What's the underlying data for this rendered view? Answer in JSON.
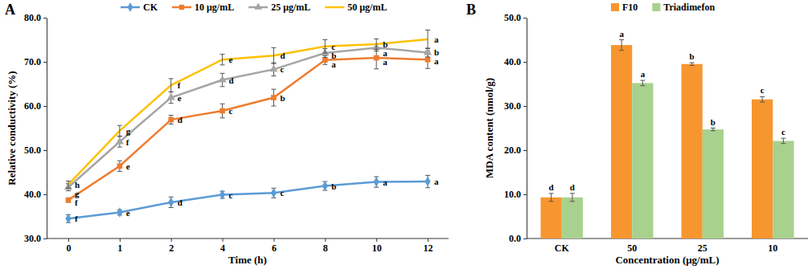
{
  "chart_data": [
    {
      "type": "line",
      "title": "A",
      "x_label": "Time (h)",
      "y_label": "Relative conductivity (%)",
      "categories": [
        "0",
        "1",
        "2",
        "4",
        "6",
        "8",
        "10",
        "12"
      ],
      "ylim": [
        30,
        80
      ],
      "yticks": [
        {
          "value": 30,
          "label": "30.0"
        },
        {
          "value": 40,
          "label": "40.0"
        },
        {
          "value": 50,
          "label": "50.0"
        },
        {
          "value": 60,
          "label": "60.0"
        },
        {
          "value": 70,
          "label": "70.0"
        },
        {
          "value": 80,
          "label": "80.0"
        }
      ],
      "legend": "top",
      "series": [
        {
          "name": "CK",
          "color": "#5B9BD5",
          "marker": "diamond",
          "values": [
            34.5,
            35.9,
            38.2,
            39.9,
            40.3,
            41.9,
            42.8,
            42.9
          ],
          "errors": [
            0.9,
            0.6,
            1.2,
            0.8,
            1.1,
            1.0,
            1.2,
            1.4
          ],
          "letters": [
            "f",
            "e",
            "d",
            "c",
            "c",
            "b",
            "a",
            "a"
          ]
        },
        {
          "name": "10 μg/mL",
          "color": "#ED7D31",
          "marker": "square",
          "values": [
            38.7,
            46.4,
            56.9,
            58.9,
            61.9,
            70.4,
            70.9,
            70.5
          ],
          "errors": [
            0.5,
            1.2,
            1.0,
            1.6,
            1.9,
            1.0,
            2.5,
            2.0
          ],
          "letters": [
            "f",
            "e",
            "d",
            "c",
            "b",
            "a",
            "a",
            "a"
          ]
        },
        {
          "name": "25 μg/mL",
          "color": "#A5A5A5",
          "marker": "triangle",
          "values": [
            41.6,
            51.9,
            61.9,
            65.9,
            68.3,
            72.0,
            73.2,
            72.1
          ],
          "errors": [
            0.8,
            1.2,
            1.3,
            1.5,
            1.5,
            1.0,
            0.8,
            1.0
          ],
          "letters": [
            "g",
            "f",
            "e",
            "d",
            "c",
            "b",
            "a",
            "b"
          ]
        },
        {
          "name": "50 μg/mL",
          "color": "#FFC000",
          "marker": "none",
          "values": [
            42.2,
            54.4,
            64.7,
            70.5,
            71.4,
            73.5,
            74.0,
            75.1
          ],
          "errors": [
            0.8,
            1.2,
            1.5,
            1.2,
            1.8,
            1.5,
            1.2,
            2.1
          ],
          "letters": [
            "h",
            "g",
            "f",
            "e",
            "d",
            "c",
            "b",
            "a"
          ]
        }
      ]
    },
    {
      "type": "bar",
      "title": "B",
      "x_label": "Concentration (μg/mL)",
      "y_label": "MDA content (nmol/g)",
      "categories": [
        "CK",
        "50",
        "25",
        "10"
      ],
      "ylim": [
        0,
        50
      ],
      "yticks": [
        {
          "value": 0,
          "label": "0.0"
        },
        {
          "value": 10,
          "label": "10.0"
        },
        {
          "value": 20,
          "label": "20.0"
        },
        {
          "value": 30,
          "label": "30.0"
        },
        {
          "value": 40,
          "label": "40.0"
        },
        {
          "value": 50,
          "label": "50.0"
        }
      ],
      "legend": "top",
      "series": [
        {
          "name": "F10",
          "color": "#F7962F",
          "values": [
            9.3,
            43.8,
            39.5,
            31.5
          ],
          "errors": [
            0.9,
            1.2,
            0.3,
            0.6
          ],
          "letters": [
            "d",
            "a",
            "b",
            "c"
          ]
        },
        {
          "name": "Triadimefon",
          "color": "#A9D18E",
          "values": [
            9.3,
            35.2,
            24.7,
            22.1
          ],
          "errors": [
            0.9,
            0.6,
            0.3,
            0.6
          ],
          "letters": [
            "d",
            "a",
            "b",
            "c"
          ]
        }
      ]
    }
  ]
}
